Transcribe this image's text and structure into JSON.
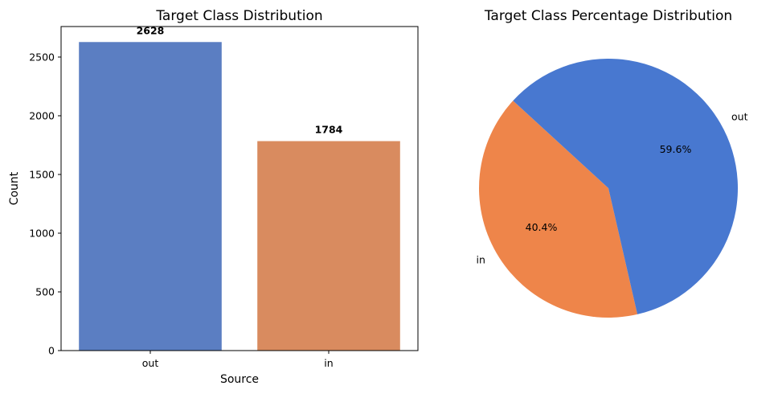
{
  "chart_data": [
    {
      "type": "bar",
      "title": "Target Class Distribution",
      "xlabel": "Source",
      "ylabel": "Count",
      "categories": [
        "out",
        "in"
      ],
      "values": [
        2628,
        1784
      ],
      "data_labels": [
        "2628",
        "1784"
      ],
      "ylim": [
        0,
        2760
      ],
      "yticks": [
        0,
        500,
        1000,
        1500,
        2000,
        2500
      ],
      "ytick_labels": [
        "0",
        "500",
        "1000",
        "1500",
        "2000",
        "2500"
      ],
      "colors": [
        "#5b7ec2",
        "#d98b5f"
      ],
      "grid": false
    },
    {
      "type": "pie",
      "title": "Target Class Percentage Distribution",
      "labels": [
        "in",
        "out"
      ],
      "values": [
        40.4,
        59.6
      ],
      "pct_labels": [
        "40.4%",
        "59.6%"
      ],
      "colors": [
        "#ee854a",
        "#4878d0"
      ]
    }
  ]
}
